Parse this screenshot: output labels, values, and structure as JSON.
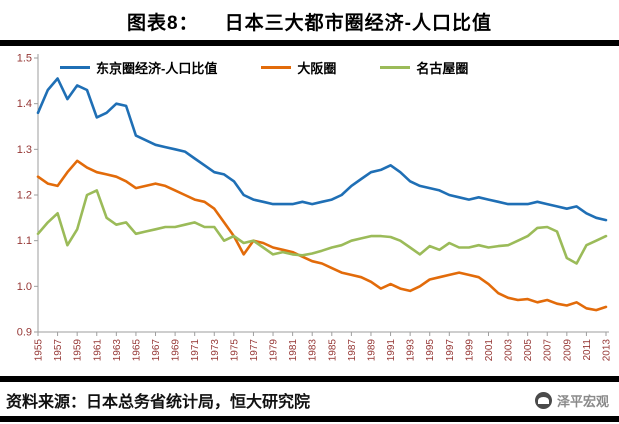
{
  "header": {
    "label": "图表8：",
    "title": "日本三大都市圈经济-人口比值"
  },
  "footer": {
    "source": "资料来源：日本总务省统计局，恒大研究院",
    "watermark": "泽平宏观"
  },
  "chart_data": {
    "type": "line",
    "title": "日本三大都市圈经济-人口比值",
    "xlabel": "",
    "ylabel": "",
    "grid": false,
    "legend_position": "top",
    "ylim": [
      0.9,
      1.5
    ],
    "yticks": [
      0.9,
      1.0,
      1.1,
      1.2,
      1.3,
      1.4,
      1.5
    ],
    "ytick_labels": [
      "0.9",
      "1.0",
      "1.1",
      "1.2",
      "1.3",
      "1.4",
      "1.5"
    ],
    "axis_color": "#9e9e9e",
    "tick_label_color": "#953735",
    "x": [
      1955,
      1956,
      1957,
      1958,
      1959,
      1960,
      1961,
      1962,
      1963,
      1964,
      1965,
      1966,
      1967,
      1968,
      1969,
      1970,
      1971,
      1972,
      1973,
      1974,
      1975,
      1976,
      1977,
      1978,
      1979,
      1980,
      1981,
      1982,
      1983,
      1984,
      1985,
      1986,
      1987,
      1988,
      1989,
      1990,
      1991,
      1992,
      1993,
      1994,
      1995,
      1996,
      1997,
      1998,
      1999,
      2000,
      2001,
      2002,
      2003,
      2004,
      2005,
      2006,
      2007,
      2008,
      2009,
      2010,
      2011,
      2012,
      2013
    ],
    "xtick_labels": [
      "1955",
      "1957",
      "1959",
      "1961",
      "1963",
      "1965",
      "1967",
      "1969",
      "1971",
      "1973",
      "1975",
      "1977",
      "1979",
      "1981",
      "1983",
      "1985",
      "1987",
      "1989",
      "1991",
      "1993",
      "1995",
      "1997",
      "1999",
      "2001",
      "2003",
      "2005",
      "2007",
      "2009",
      "2011",
      "2013"
    ],
    "series": [
      {
        "name": "东京圈经济-人口比值",
        "color": "#1F6FB5",
        "values": [
          1.38,
          1.43,
          1.455,
          1.41,
          1.44,
          1.43,
          1.37,
          1.38,
          1.4,
          1.395,
          1.33,
          1.32,
          1.31,
          1.305,
          1.3,
          1.295,
          1.28,
          1.265,
          1.25,
          1.245,
          1.23,
          1.2,
          1.19,
          1.185,
          1.18,
          1.18,
          1.18,
          1.185,
          1.18,
          1.185,
          1.19,
          1.2,
          1.22,
          1.235,
          1.25,
          1.255,
          1.265,
          1.25,
          1.23,
          1.22,
          1.215,
          1.21,
          1.2,
          1.195,
          1.19,
          1.195,
          1.19,
          1.185,
          1.18,
          1.18,
          1.18,
          1.185,
          1.18,
          1.175,
          1.17,
          1.175,
          1.16,
          1.15,
          1.145
        ]
      },
      {
        "name": "大阪圈",
        "color": "#E26B0A",
        "values": [
          1.24,
          1.225,
          1.22,
          1.25,
          1.275,
          1.26,
          1.25,
          1.245,
          1.24,
          1.23,
          1.215,
          1.22,
          1.225,
          1.22,
          1.21,
          1.2,
          1.19,
          1.185,
          1.17,
          1.14,
          1.11,
          1.07,
          1.1,
          1.095,
          1.085,
          1.08,
          1.075,
          1.065,
          1.055,
          1.05,
          1.04,
          1.03,
          1.025,
          1.02,
          1.01,
          0.995,
          1.005,
          0.995,
          0.99,
          1.0,
          1.015,
          1.02,
          1.025,
          1.03,
          1.025,
          1.02,
          1.005,
          0.985,
          0.975,
          0.97,
          0.972,
          0.965,
          0.97,
          0.962,
          0.958,
          0.965,
          0.952,
          0.948,
          0.955
        ]
      },
      {
        "name": "名古屋圈",
        "color": "#9BBB59",
        "values": [
          1.115,
          1.14,
          1.16,
          1.09,
          1.125,
          1.2,
          1.21,
          1.15,
          1.135,
          1.14,
          1.115,
          1.12,
          1.125,
          1.13,
          1.13,
          1.135,
          1.14,
          1.13,
          1.13,
          1.1,
          1.11,
          1.095,
          1.1,
          1.085,
          1.07,
          1.075,
          1.07,
          1.068,
          1.072,
          1.078,
          1.085,
          1.09,
          1.1,
          1.105,
          1.11,
          1.11,
          1.108,
          1.1,
          1.085,
          1.07,
          1.088,
          1.08,
          1.095,
          1.085,
          1.085,
          1.09,
          1.085,
          1.088,
          1.09,
          1.1,
          1.11,
          1.128,
          1.13,
          1.12,
          1.062,
          1.05,
          1.09,
          1.1,
          1.11
        ]
      }
    ]
  }
}
